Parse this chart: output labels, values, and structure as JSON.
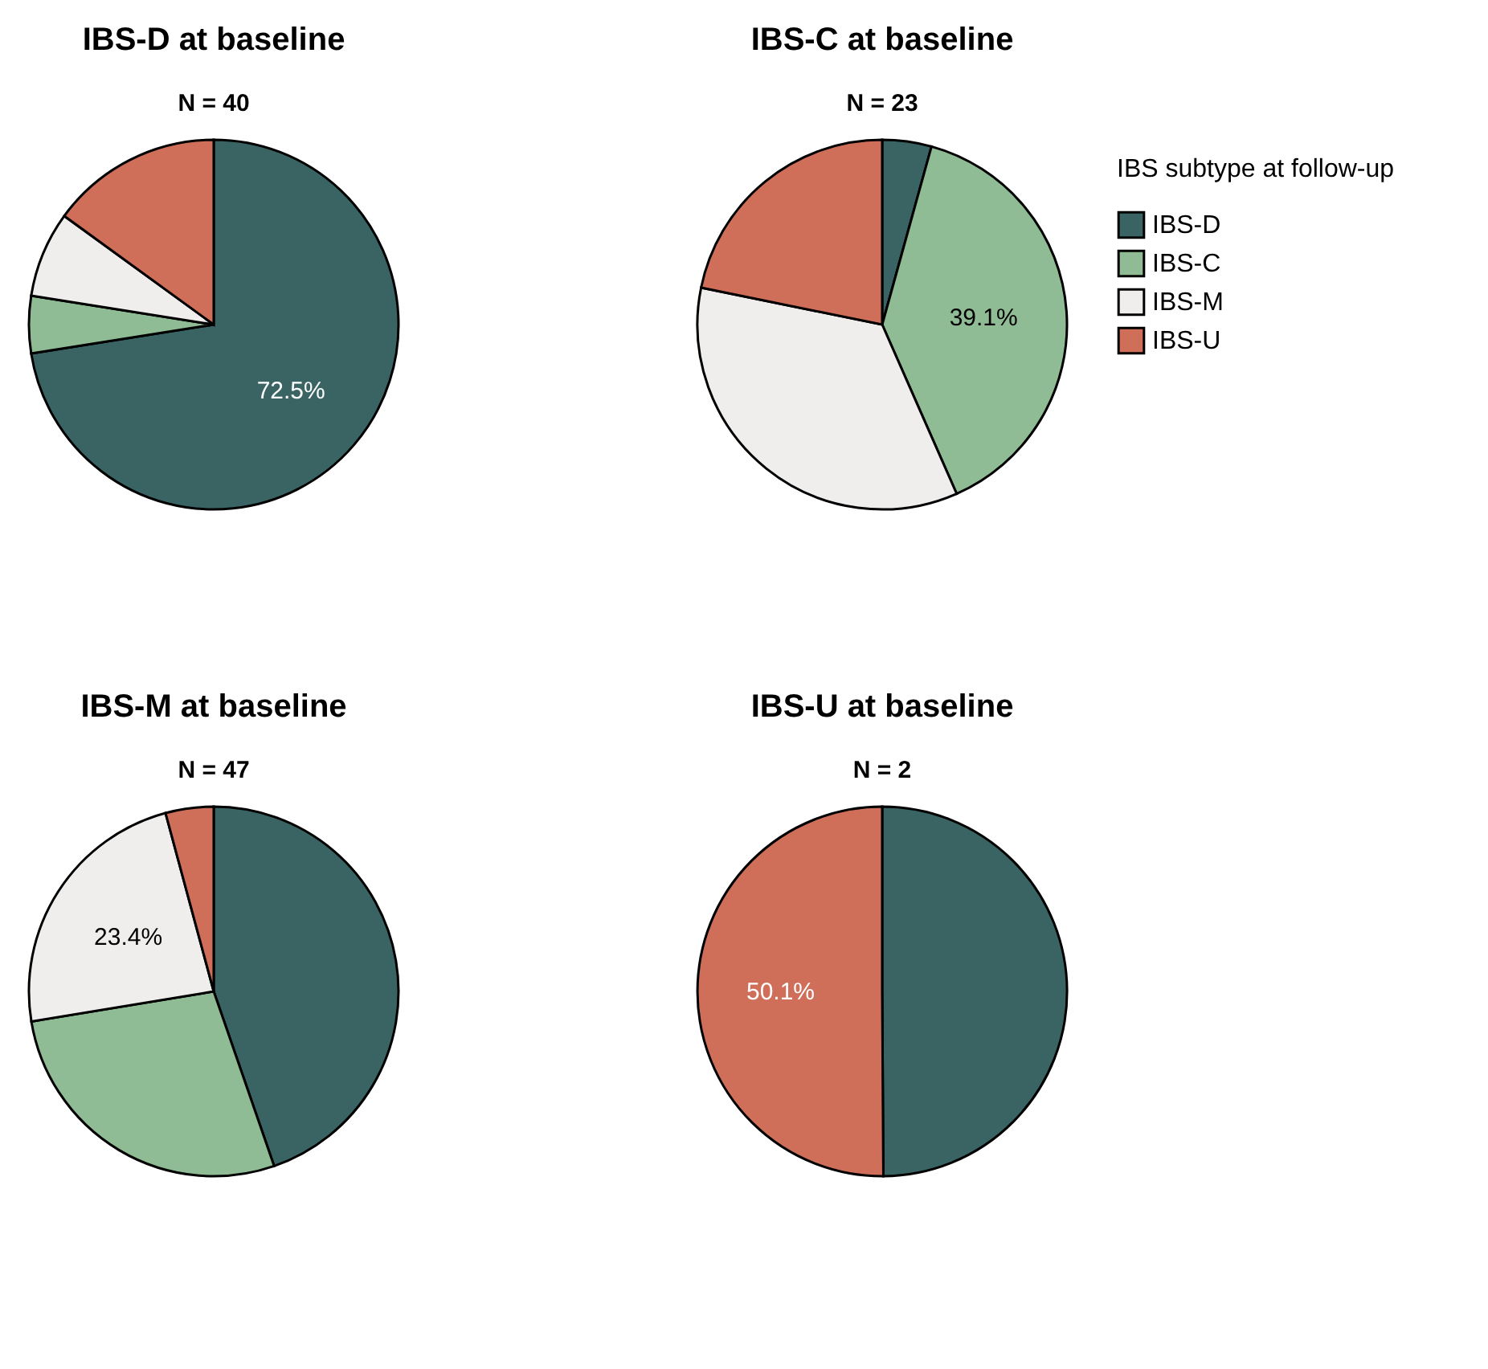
{
  "chart_data": [
    {
      "type": "pie",
      "title": "IBS-D at baseline",
      "subtitle": "N = 40",
      "categories": [
        "IBS-D",
        "IBS-C",
        "IBS-M",
        "IBS-U"
      ],
      "values": [
        72.5,
        5,
        7.5,
        15
      ],
      "colors": [
        "#3a6464",
        "#8fbc94",
        "#efeeec",
        "#cf6f5a"
      ],
      "value_labels": [
        "72.5%",
        null,
        null,
        null
      ],
      "legend": "right",
      "legend_title": "IBS subtype at follow-up"
    },
    {
      "type": "pie",
      "title": "IBS-C at baseline",
      "subtitle": "N = 23",
      "categories": [
        null,
        null,
        null,
        null
      ],
      "values": [
        4.3,
        39.1,
        34.8,
        21.8
      ],
      "colors": [
        "#3a6464",
        "#8fbc94",
        "#efeeec",
        "#cf6f5a"
      ],
      "value_labels": [
        null,
        "39.1%",
        null,
        null
      ]
    },
    {
      "type": "pie",
      "title": "IBS-M at baseline",
      "subtitle": "N = 47",
      "categories": [
        null,
        null,
        null,
        null
      ],
      "values": [
        44.7,
        27.7,
        23.4,
        4.2
      ],
      "colors": [
        "#3a6464",
        "#8fbc94",
        "#efeeec",
        "#cf6f5a"
      ],
      "value_labels": [
        null,
        null,
        "23.4%",
        null
      ]
    },
    {
      "type": "pie",
      "title": "IBS-U at baseline",
      "subtitle": "N = 2",
      "categories": [
        null,
        null,
        null,
        null
      ],
      "values": [
        49.9,
        0,
        0,
        50.1
      ],
      "colors": [
        "#3a6464",
        "#8fbc94",
        "#efeeec",
        "#cf6f5a"
      ],
      "value_labels": [
        null,
        null,
        null,
        "50.1%"
      ]
    }
  ]
}
